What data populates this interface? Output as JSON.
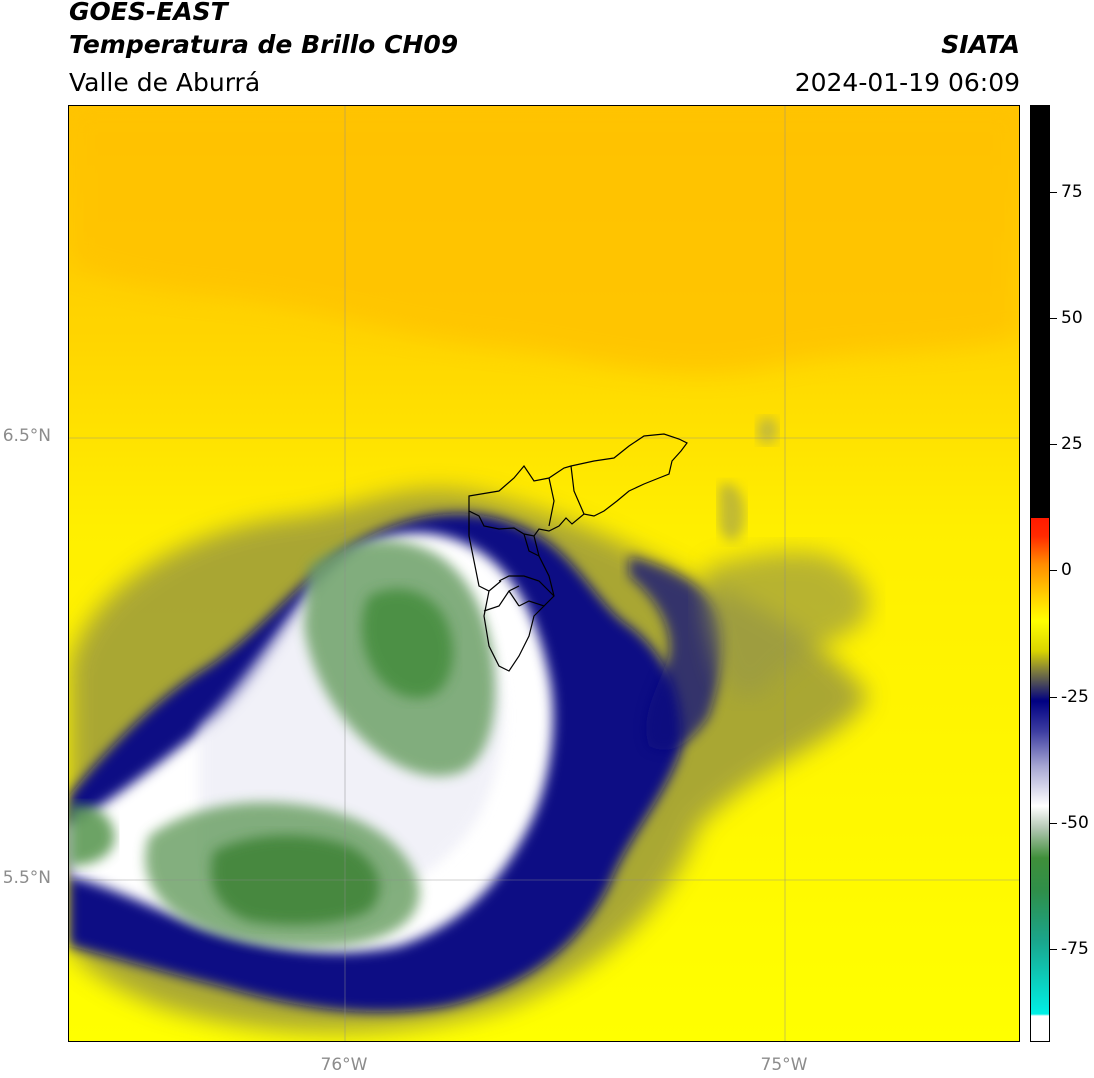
{
  "header": {
    "satellite": "GOES-EAST",
    "product": "Temperatura de Brillo CH09",
    "agency": "SIATA",
    "region": "Valle de Aburrá",
    "datetime": "2024-01-19 06:09"
  },
  "map": {
    "lat_labels": [
      {
        "label": "6.5°N",
        "value": 6.5
      },
      {
        "label": "5.5°N",
        "value": 5.5
      }
    ],
    "lon_labels": [
      {
        "label": "76°W",
        "value": -76.0
      },
      {
        "label": "75°W",
        "value": -75.0
      }
    ],
    "lat_range": [
      5.14,
      7.25
    ],
    "lon_range": [
      -76.62,
      -74.47
    ]
  },
  "colorbar": {
    "ticks": [
      {
        "label": "75",
        "value": 75
      },
      {
        "label": "50",
        "value": 50
      },
      {
        "label": "25",
        "value": 25
      },
      {
        "label": "0",
        "value": 0
      },
      {
        "label": "-25",
        "value": -25
      },
      {
        "label": "-50",
        "value": -50
      },
      {
        "label": "-75",
        "value": -75
      }
    ],
    "range": [
      -93,
      92
    ],
    "colors": {
      "black": "#000000",
      "red": "#ff2a00",
      "orange": "#ff8c00",
      "gold": "#ffd000",
      "yellow": "#ffff00",
      "olive": "#7f7d3c",
      "navy": "#000082",
      "white": "#ffffff",
      "green": "#3f8f3a",
      "cyan": "#00f0e6"
    }
  }
}
